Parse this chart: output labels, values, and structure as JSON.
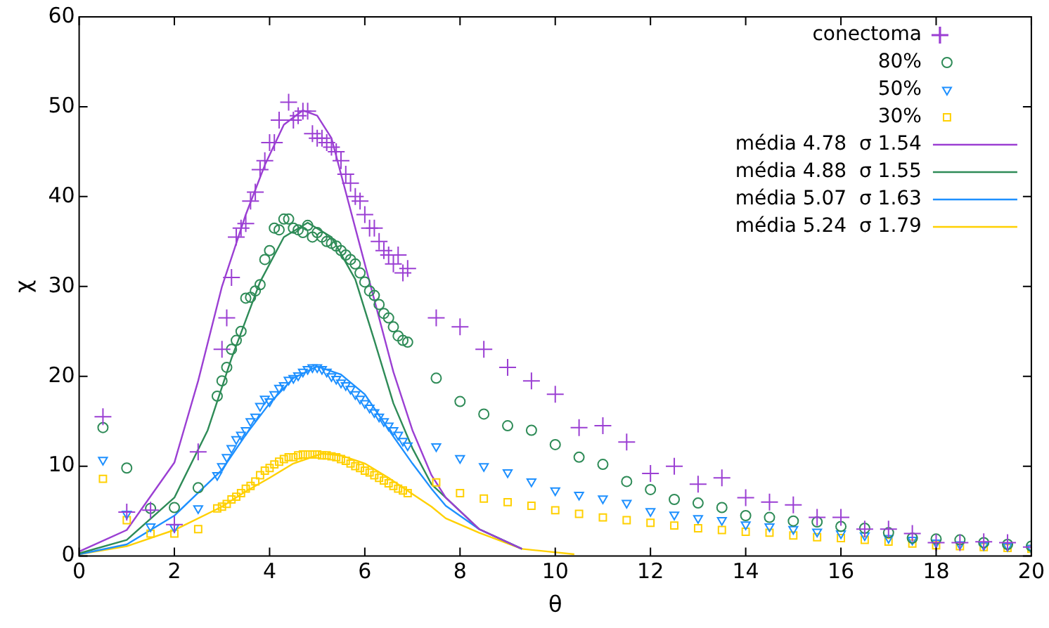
{
  "chart_data": {
    "type": "scatter",
    "xlabel": "θ",
    "ylabel": "χ",
    "xlim": [
      0,
      20
    ],
    "xticks": [
      0,
      2,
      4,
      6,
      8,
      10,
      12,
      14,
      16,
      18,
      20
    ],
    "ylim": [
      0,
      60
    ],
    "yticks": [
      0,
      10,
      20,
      30,
      40,
      50,
      60
    ],
    "grid": false,
    "legend": "top right",
    "series": [
      {
        "name": "conectoma",
        "color": "#9b3fd3",
        "marker": "cross",
        "x": [
          0.5,
          1,
          1.5,
          2,
          2.5,
          3.0,
          3.1,
          3.2,
          3.3,
          3.4,
          3.5,
          3.6,
          3.7,
          3.8,
          3.9,
          4.0,
          4.1,
          4.2,
          4.4,
          4.5,
          4.6,
          4.7,
          4.8,
          4.9,
          5.0,
          5.1,
          5.2,
          5.3,
          5.4,
          5.5,
          5.6,
          5.7,
          5.8,
          5.9,
          6.0,
          6.1,
          6.2,
          6.3,
          6.4,
          6.5,
          6.6,
          6.7,
          6.8,
          6.9,
          7.5,
          8,
          8.5,
          9,
          9.5,
          10,
          10.5,
          11,
          11.5,
          12,
          12.5,
          13,
          13.5,
          14,
          14.5,
          15,
          15.5,
          16,
          16.5,
          17,
          17.5,
          18,
          18.5,
          19,
          19.5,
          20
        ],
        "values": [
          15.5,
          4.9,
          5.1,
          3.5,
          11.6,
          23,
          26.5,
          31,
          35.5,
          36.5,
          37,
          39.5,
          40.5,
          43,
          44,
          46,
          46,
          48.5,
          50.5,
          48.5,
          49,
          49.5,
          49.5,
          47,
          46.5,
          46.5,
          46,
          45.5,
          45,
          44,
          42.5,
          41.5,
          40,
          39.5,
          38,
          36.5,
          36.5,
          35,
          34,
          33.5,
          32.5,
          33.5,
          31.5,
          32,
          26.5,
          25.5,
          23,
          21,
          19.5,
          18,
          14.3,
          14.5,
          12.7,
          9.2,
          10,
          8,
          8.7,
          6.5,
          6,
          5.7,
          4.3,
          4.3,
          3,
          3,
          2.5,
          1.5,
          1.5,
          1.6,
          1.5,
          1
        ]
      },
      {
        "name": "80%",
        "color": "#2e8b57",
        "marker": "circle",
        "x": [
          0.5,
          1,
          1.5,
          2,
          2.5,
          2.9,
          3.0,
          3.1,
          3.2,
          3.3,
          3.4,
          3.5,
          3.6,
          3.7,
          3.8,
          3.9,
          4.0,
          4.1,
          4.2,
          4.3,
          4.4,
          4.5,
          4.6,
          4.7,
          4.8,
          4.9,
          5.0,
          5.1,
          5.2,
          5.3,
          5.4,
          5.5,
          5.6,
          5.7,
          5.8,
          5.9,
          6.0,
          6.1,
          6.2,
          6.3,
          6.4,
          6.5,
          6.6,
          6.7,
          6.8,
          6.9,
          7.5,
          8,
          8.5,
          9,
          9.5,
          10,
          10.5,
          11,
          11.5,
          12,
          12.5,
          13,
          13.5,
          14,
          14.5,
          15,
          15.5,
          16,
          16.5,
          17,
          17.5,
          18,
          18.5,
          19,
          19.5,
          20
        ],
        "values": [
          14.3,
          9.8,
          5.3,
          5.4,
          7.6,
          17.8,
          19.5,
          21,
          23,
          24,
          25,
          28.7,
          28.8,
          29.5,
          30.2,
          33,
          34,
          36.5,
          36.3,
          37.5,
          37.5,
          36.5,
          36.3,
          36,
          36.8,
          35.5,
          36,
          35.5,
          35,
          34.8,
          34.5,
          34,
          33.5,
          33,
          32.5,
          31.5,
          30.5,
          29.5,
          29,
          28,
          27,
          26.5,
          25.5,
          24.5,
          24,
          23.8,
          19.8,
          17.2,
          15.8,
          14.5,
          14,
          12.4,
          11,
          10.2,
          8.3,
          7.4,
          6.3,
          5.9,
          5.4,
          4.5,
          4.3,
          3.9,
          3.8,
          3.3,
          3.1,
          2.6,
          2,
          1.9,
          1.8,
          1.5,
          1.3,
          1.1
        ]
      },
      {
        "name": "50%",
        "color": "#1e90ff",
        "marker": "triangle",
        "x": [
          0.5,
          1,
          1.5,
          2,
          2.5,
          2.9,
          3.0,
          3.1,
          3.2,
          3.3,
          3.4,
          3.5,
          3.6,
          3.7,
          3.8,
          3.9,
          4.0,
          4.1,
          4.2,
          4.3,
          4.4,
          4.5,
          4.6,
          4.7,
          4.8,
          4.9,
          5.0,
          5.1,
          5.2,
          5.3,
          5.4,
          5.5,
          5.6,
          5.7,
          5.8,
          5.9,
          6.0,
          6.1,
          6.2,
          6.3,
          6.4,
          6.5,
          6.6,
          6.7,
          6.8,
          6.9,
          7.5,
          8,
          8.5,
          9,
          9.5,
          10,
          10.5,
          11,
          11.5,
          12,
          12.5,
          13,
          13.5,
          14,
          14.5,
          15,
          15.5,
          16,
          16.5,
          17,
          17.5,
          18,
          18.5,
          19,
          19.5,
          20
        ],
        "values": [
          10.7,
          4.7,
          3.3,
          3.2,
          5.3,
          9,
          10,
          11,
          12,
          13,
          13.5,
          14,
          15,
          15.5,
          16.7,
          17.5,
          17.2,
          18,
          18.7,
          19,
          19.6,
          19.8,
          20.1,
          20.5,
          20.8,
          21,
          21,
          20.8,
          20.5,
          20,
          19.7,
          19.3,
          19,
          18.6,
          18,
          17.5,
          17,
          16.5,
          16,
          15.5,
          15,
          14.5,
          14,
          13.5,
          12.8,
          12.3,
          12.2,
          10.9,
          10,
          9.3,
          8.3,
          7.3,
          6.8,
          6.4,
          5.9,
          5,
          4.6,
          4.2,
          4,
          3.5,
          3.3,
          3,
          2.7,
          2.5,
          2.3,
          2,
          1.8,
          1.5,
          1.3,
          1.2,
          1.1,
          0.9
        ]
      },
      {
        "name": "30%",
        "color": "#ffd000",
        "marker": "square",
        "x": [
          0.5,
          1,
          1.5,
          2,
          2.5,
          2.9,
          3.0,
          3.1,
          3.2,
          3.3,
          3.4,
          3.5,
          3.6,
          3.7,
          3.8,
          3.9,
          4.0,
          4.1,
          4.2,
          4.3,
          4.4,
          4.5,
          4.6,
          4.7,
          4.8,
          4.9,
          5.0,
          5.1,
          5.2,
          5.3,
          5.4,
          5.5,
          5.6,
          5.7,
          5.8,
          5.9,
          6.0,
          6.1,
          6.2,
          6.3,
          6.4,
          6.5,
          6.6,
          6.7,
          6.8,
          6.9,
          7.5,
          8,
          8.5,
          9,
          9.5,
          10,
          10.5,
          11,
          11.5,
          12,
          12.5,
          13,
          13.5,
          14,
          14.5,
          15,
          15.5,
          16,
          16.5,
          17,
          17.5,
          18,
          18.5,
          19,
          19.5,
          20
        ],
        "values": [
          8.6,
          4,
          2.5,
          2.5,
          3,
          5.3,
          5.5,
          5.8,
          6.3,
          6.6,
          7,
          7.5,
          7.8,
          8.3,
          9,
          9.5,
          9.8,
          10.2,
          10.5,
          10.8,
          11,
          11,
          11.2,
          11.3,
          11.3,
          11.3,
          11.3,
          11.2,
          11.2,
          11.1,
          11,
          10.8,
          10.6,
          10.3,
          10,
          9.8,
          9.5,
          9.3,
          9,
          8.7,
          8.4,
          8.1,
          7.8,
          7.5,
          7.3,
          7,
          8.2,
          7,
          6.4,
          6,
          5.6,
          5.1,
          4.7,
          4.3,
          4,
          3.7,
          3.4,
          3.1,
          2.9,
          2.7,
          2.6,
          2.3,
          2.1,
          2,
          1.8,
          1.6,
          1.4,
          1.2,
          1.1,
          1,
          0.9,
          0.8
        ]
      },
      {
        "name": "média 4.78  σ 1.54",
        "color": "#9b3fd3",
        "type": "line",
        "marker": "none",
        "x": [
          0,
          1,
          2,
          2.5,
          3,
          3.5,
          3.9,
          4.3,
          4.7,
          5.0,
          5.3,
          5.6,
          6.1,
          6.6,
          7.0,
          7.4,
          7.7,
          8.4,
          9.3
        ],
        "values": [
          0.5,
          2.9,
          10.4,
          19.5,
          30,
          38,
          43.5,
          48,
          49.6,
          49,
          46.5,
          40.5,
          30.5,
          20.5,
          14,
          9,
          6.5,
          3,
          0.8
        ]
      },
      {
        "name": "média 4.88  σ 1.55",
        "color": "#2e8b57",
        "type": "line",
        "marker": "none",
        "x": [
          0,
          1,
          2,
          2.7,
          3.2,
          3.8,
          4.3,
          4.8,
          5.3,
          5.8,
          6.2,
          6.6,
          7.0,
          7.4,
          7.7,
          8.4,
          9.3
        ],
        "values": [
          0.3,
          1.8,
          6.5,
          14,
          22,
          30.5,
          35.5,
          37.1,
          35.5,
          30.8,
          24,
          17,
          12,
          8,
          6.5,
          3,
          0.8
        ]
      },
      {
        "name": "média 5.07  σ 1.63",
        "color": "#1e90ff",
        "type": "line",
        "marker": "none",
        "x": [
          0,
          1,
          2,
          3,
          3.5,
          4,
          4.5,
          5,
          5.5,
          6,
          6.6,
          7.0,
          7.4,
          7.7,
          8.4,
          9.3
        ],
        "values": [
          0.2,
          1.3,
          4.5,
          9.6,
          13.5,
          17,
          19.8,
          21.1,
          20.2,
          18,
          13.3,
          10.3,
          7.5,
          5.6,
          3,
          0.8
        ]
      },
      {
        "name": "média 5.24  σ 1.79",
        "color": "#ffd000",
        "type": "line",
        "marker": "none",
        "x": [
          0,
          1,
          2,
          3,
          3.5,
          4,
          4.5,
          5.1,
          5.5,
          6,
          6.5,
          7,
          7.4,
          7.7,
          8.4,
          9.3,
          10.4
        ],
        "values": [
          0.2,
          1.1,
          2.9,
          5.5,
          7.2,
          8.7,
          10.3,
          11.4,
          11.2,
          10.3,
          8.7,
          6.9,
          5.5,
          4.2,
          2.6,
          0.8,
          0.2
        ]
      }
    ]
  }
}
